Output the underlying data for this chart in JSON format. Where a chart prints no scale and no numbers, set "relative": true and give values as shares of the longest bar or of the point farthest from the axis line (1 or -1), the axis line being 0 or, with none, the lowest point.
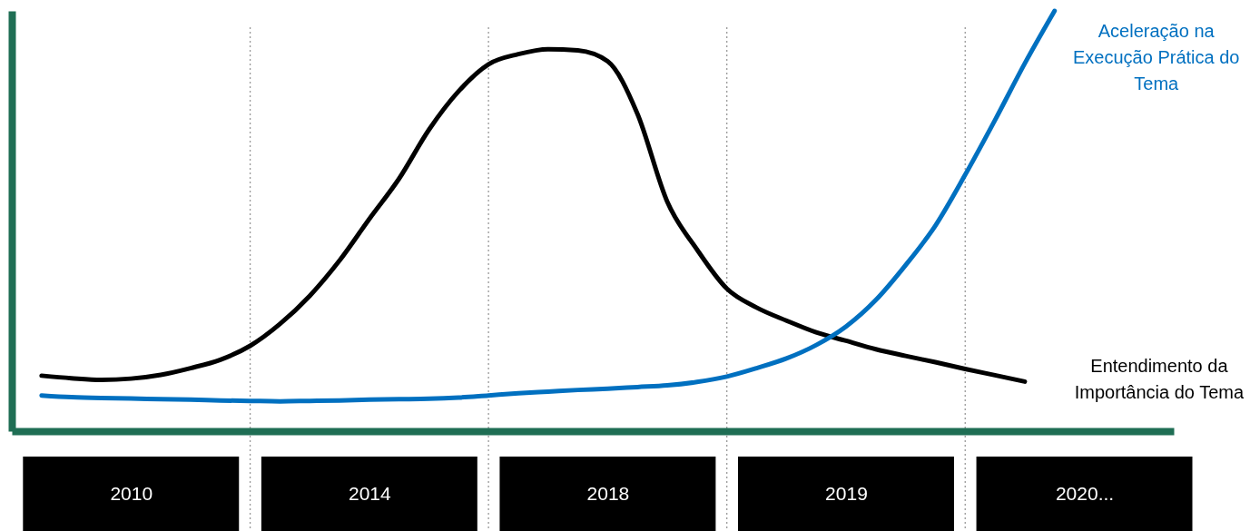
{
  "chart_data": {
    "type": "line",
    "relative": true,
    "categories": [
      null,
      null,
      null,
      null,
      "2010",
      null,
      null,
      null,
      null,
      null,
      null,
      null,
      "2014",
      null,
      null,
      null,
      null,
      null,
      null,
      null,
      "2018",
      null,
      null,
      null,
      null,
      null,
      null,
      null,
      "2019",
      null,
      null,
      null,
      null,
      null,
      null,
      null,
      "2020...",
      null,
      null,
      null
    ],
    "tick_labels": "x",
    "grid": "x",
    "legend": false,
    "marker": "none",
    "line_style": "solid",
    "series": [
      {
        "name": "Entendimento da\nImportância do Tema",
        "color": "#000000",
        "values": [
          null,
          0.132,
          0.126,
          0.122,
          0.125,
          0.134,
          0.15,
          0.17,
          0.203,
          0.255,
          0.322,
          0.406,
          0.505,
          0.601,
          0.717,
          0.809,
          0.873,
          0.897,
          0.909,
          0.906,
          0.88,
          0.755,
          0.546,
          0.432,
          0.339,
          0.294,
          0.263,
          0.235,
          0.215,
          0.195,
          0.179,
          0.164,
          0.148,
          0.133,
          0.118,
          null,
          null,
          null,
          null,
          null
        ]
      },
      {
        "name": "Aceleração na\nExecução  Prática do\nTema",
        "color": "#0070c0",
        "values": [
          null,
          0.085,
          0.081,
          0.079,
          0.078,
          0.076,
          0.075,
          0.073,
          0.072,
          0.071,
          0.072,
          0.073,
          0.075,
          0.076,
          0.077,
          0.08,
          0.085,
          0.09,
          0.094,
          0.098,
          0.101,
          0.105,
          0.109,
          0.117,
          0.13,
          0.15,
          0.173,
          0.205,
          0.249,
          0.312,
          0.395,
          0.489,
          0.61,
          0.74,
          0.875,
          1.0,
          null,
          null,
          null,
          null
        ]
      }
    ]
  }
}
